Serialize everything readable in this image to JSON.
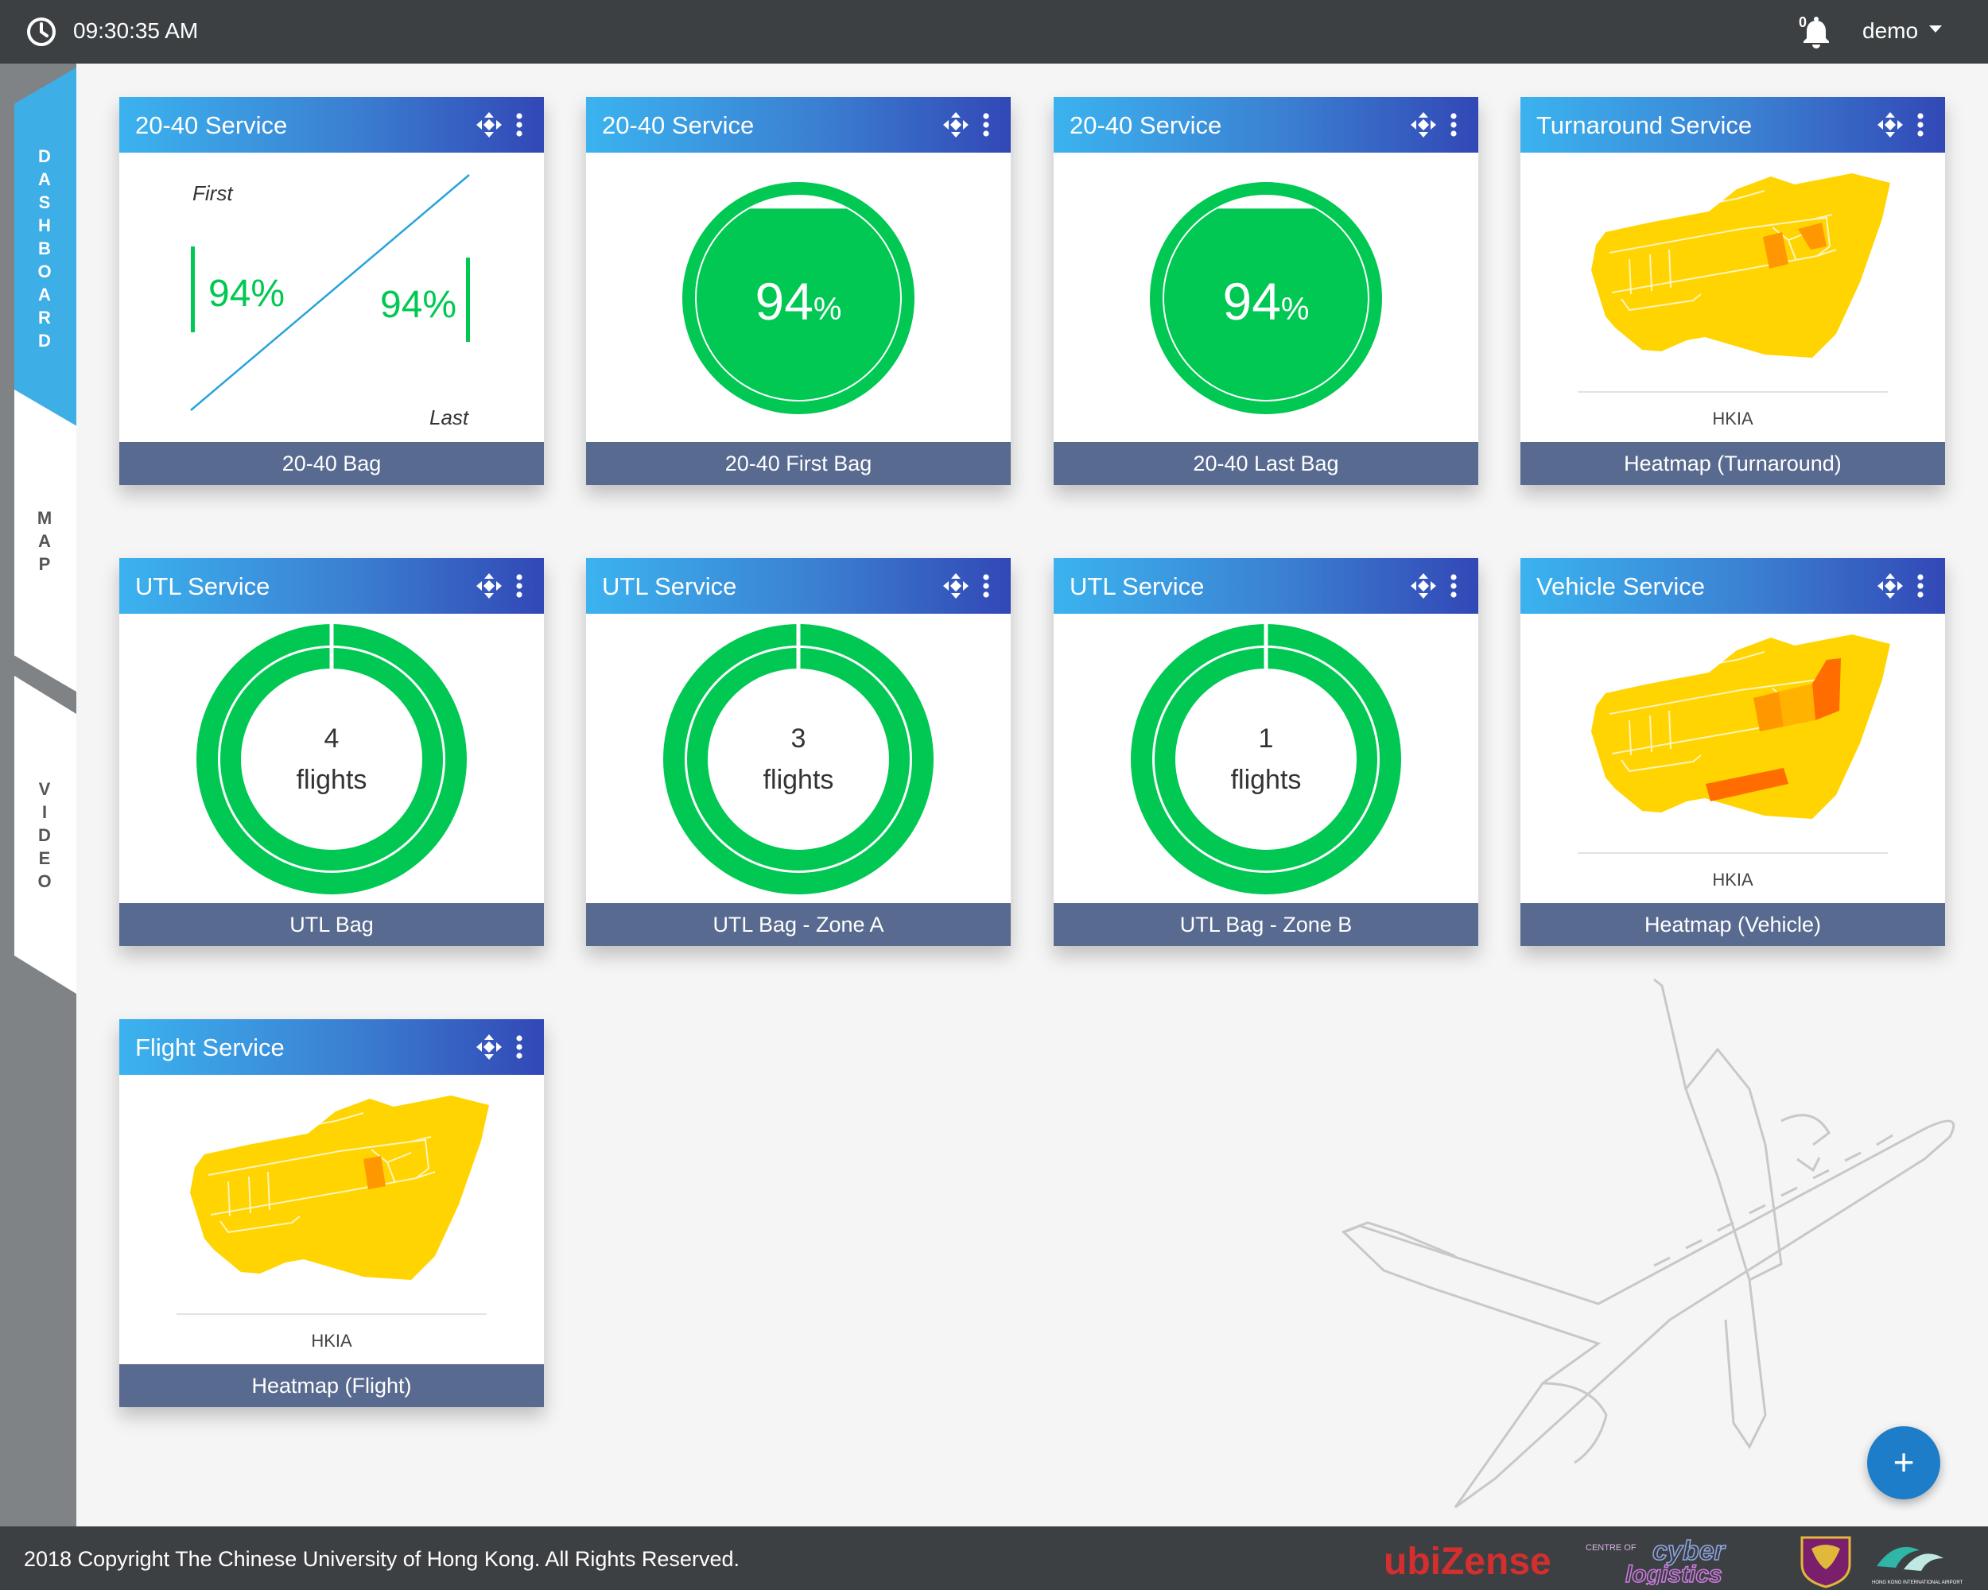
{
  "header": {
    "time": "09:30:35 AM",
    "notification_count": "0",
    "username": "demo"
  },
  "sidebar": {
    "tabs": [
      {
        "label": "DASHBOARD",
        "active": true
      },
      {
        "label": "MAP",
        "active": false
      },
      {
        "label": "VIDEO",
        "active": false
      }
    ]
  },
  "colors": {
    "green": "#00c853",
    "header_start": "#3bb3ef",
    "header_end": "#3248b6",
    "footer_bar": "#586a8f",
    "accent_blue": "#1e7dc8",
    "heat_yellow": "#ffd400",
    "heat_orange": "#ff9800",
    "heat_red": "#ff6d00"
  },
  "cards": [
    {
      "title": "20-40 Service",
      "footer": "20-40 Bag",
      "first_label": "First",
      "last_label": "Last",
      "first_value": "94%",
      "last_value": "94%"
    },
    {
      "title": "20-40 Service",
      "footer": "20-40 First Bag",
      "value": "94",
      "unit": "%",
      "level_percent": 94
    },
    {
      "title": "20-40 Service",
      "footer": "20-40 Last Bag",
      "value": "94",
      "unit": "%",
      "level_percent": 94
    },
    {
      "title": "Turnaround Service",
      "footer": "Heatmap (Turnaround)",
      "map_label": "HKIA"
    },
    {
      "title": "UTL Service",
      "footer": "UTL Bag",
      "count": "4",
      "unit": "flights"
    },
    {
      "title": "UTL Service",
      "footer": "UTL Bag - Zone A",
      "count": "3",
      "unit": "flights"
    },
    {
      "title": "UTL Service",
      "footer": "UTL Bag - Zone B",
      "count": "1",
      "unit": "flights"
    },
    {
      "title": "Vehicle Service",
      "footer": "Heatmap (Vehicle)",
      "map_label": "HKIA"
    },
    {
      "title": "Flight Service",
      "footer": "Heatmap (Flight)",
      "map_label": "HKIA"
    }
  ],
  "fab": {
    "label": "+"
  },
  "footer": {
    "copyright": "2018 Copyright The Chinese University of Hong Kong. All Rights Reserved.",
    "logos": {
      "ubizense": "ubiZense",
      "cyber_small": "CENTRE OF",
      "cyber_top": "cyber",
      "cyber_bottom": "logistics",
      "hkia_text": "HONG KONG INTERNATIONAL AIRPORT"
    }
  }
}
